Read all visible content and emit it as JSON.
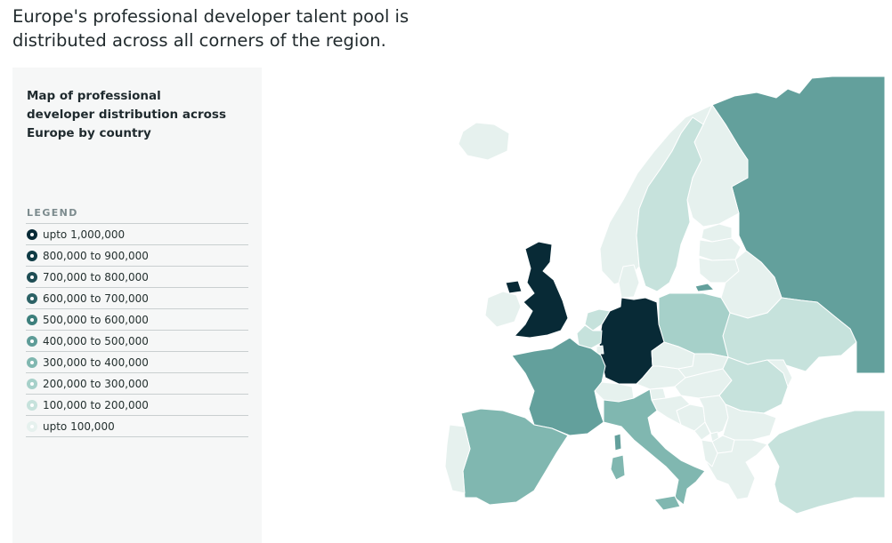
{
  "headline": "Europe's professional developer talent pool is distributed across all corners of the region.",
  "panel": {
    "title": "Map of professional developer distribution across Europe by country",
    "legend_title": "LEGEND",
    "legend": [
      {
        "label": "upto 1,000,000",
        "color": "#082a36"
      },
      {
        "label": "800,000 to 900,000",
        "color": "#0f3b45"
      },
      {
        "label": "700,000 to 800,000",
        "color": "#1e4d54"
      },
      {
        "label": "600,000 to 700,000",
        "color": "#2c6266"
      },
      {
        "label": "500,000 to 600,000",
        "color": "#3d7f7c"
      },
      {
        "label": "400,000 to 500,000",
        "color": "#5e9c98"
      },
      {
        "label": "300,000 to 400,000",
        "color": "#80b7b0"
      },
      {
        "label": "200,000 to 300,000",
        "color": "#a6d0c9"
      },
      {
        "label": "100,000 to 200,000",
        "color": "#c6e2dc"
      },
      {
        "label": "upto 100,000",
        "color": "#e6f1ee"
      }
    ]
  },
  "map": {
    "countries": [
      {
        "name": "Russia",
        "color": "#63a09c"
      },
      {
        "name": "Finland",
        "color": "#e6f1ee"
      },
      {
        "name": "Norway",
        "color": "#e6f1ee"
      },
      {
        "name": "Sweden",
        "color": "#c6e2dc"
      },
      {
        "name": "Iceland",
        "color": "#e6f1ee"
      },
      {
        "name": "Estonia",
        "color": "#e6f1ee"
      },
      {
        "name": "Latvia",
        "color": "#e6f1ee"
      },
      {
        "name": "Lithuania",
        "color": "#e6f1ee"
      },
      {
        "name": "Kaliningrad",
        "color": "#63a09c"
      },
      {
        "name": "Belarus",
        "color": "#e6f1ee"
      },
      {
        "name": "Ukraine",
        "color": "#c6e2dc"
      },
      {
        "name": "Poland",
        "color": "#a6d0c9"
      },
      {
        "name": "Germany",
        "color": "#082a36"
      },
      {
        "name": "Denmark",
        "color": "#e6f1ee"
      },
      {
        "name": "Netherlands",
        "color": "#c6e2dc"
      },
      {
        "name": "Belgium",
        "color": "#c6e2dc"
      },
      {
        "name": "Luxembourg",
        "color": "#e6f1ee"
      },
      {
        "name": "United Kingdom",
        "color": "#082a36"
      },
      {
        "name": "Ireland",
        "color": "#e6f1ee"
      },
      {
        "name": "Northern Ireland",
        "color": "#082a36"
      },
      {
        "name": "France",
        "color": "#63a09c"
      },
      {
        "name": "Switzerland",
        "color": "#e6f1ee"
      },
      {
        "name": "Czechia",
        "color": "#e6f1ee"
      },
      {
        "name": "Austria",
        "color": "#e6f1ee"
      },
      {
        "name": "Slovakia",
        "color": "#e6f1ee"
      },
      {
        "name": "Hungary",
        "color": "#e6f1ee"
      },
      {
        "name": "Romania",
        "color": "#c6e2dc"
      },
      {
        "name": "Moldova",
        "color": "#e6f1ee"
      },
      {
        "name": "Slovenia",
        "color": "#e6f1ee"
      },
      {
        "name": "Croatia",
        "color": "#e6f1ee"
      },
      {
        "name": "Bosnia",
        "color": "#e6f1ee"
      },
      {
        "name": "Serbia",
        "color": "#e6f1ee"
      },
      {
        "name": "Montenegro",
        "color": "#e6f1ee"
      },
      {
        "name": "Kosovo",
        "color": "#e6f1ee"
      },
      {
        "name": "North Macedonia",
        "color": "#e6f1ee"
      },
      {
        "name": "Albania",
        "color": "#e6f1ee"
      },
      {
        "name": "Bulgaria",
        "color": "#e6f1ee"
      },
      {
        "name": "Greece",
        "color": "#e6f1ee"
      },
      {
        "name": "Turkey",
        "color": "#c6e2dc"
      },
      {
        "name": "Italy",
        "color": "#80b7b0"
      },
      {
        "name": "Sardinia",
        "color": "#80b7b0"
      },
      {
        "name": "Corsica",
        "color": "#63a09c"
      },
      {
        "name": "Sicily",
        "color": "#80b7b0"
      },
      {
        "name": "Spain",
        "color": "#80b7b0"
      },
      {
        "name": "Portugal",
        "color": "#e6f1ee"
      }
    ]
  }
}
